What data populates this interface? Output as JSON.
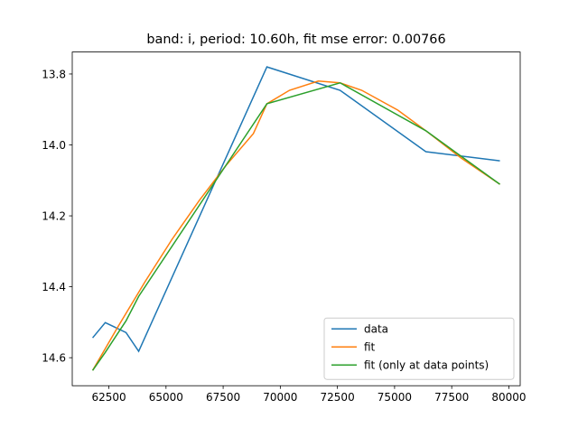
{
  "chart_data": {
    "type": "line",
    "title": "band: i, period: 10.60h, fit mse error: 0.00766",
    "xlim": [
      60898,
      80496
    ],
    "ylim": [
      14.679,
      13.738
    ],
    "xticks": [
      62500,
      65000,
      67500,
      70000,
      72500,
      75000,
      77500,
      80000
    ],
    "yticks": [
      13.8,
      {
        "value": 14,
        "label": "14.0"
      },
      14.2,
      14.4,
      14.6
    ],
    "legend": "lower right",
    "series": [
      {
        "name": "data",
        "color": "#1f77b4",
        "x": [
          61789,
          62342,
          63251,
          63804,
          69414,
          72615,
          76368,
          79608
        ],
        "values": [
          14.544,
          14.501,
          14.529,
          14.582,
          13.78,
          13.846,
          14.019,
          14.045
        ]
      },
      {
        "name": "fit",
        "color": "#ff7f0e",
        "x": [
          61789,
          62895,
          64080,
          65266,
          66451,
          67636,
          68822,
          69414,
          70402,
          71666,
          72615,
          73563,
          75143,
          76368,
          77909,
          79608
        ],
        "values": [
          14.636,
          14.513,
          14.386,
          14.266,
          14.157,
          14.057,
          13.968,
          13.884,
          13.846,
          13.82,
          13.825,
          13.846,
          13.902,
          13.96,
          14.037,
          14.111
        ]
      },
      {
        "name": "fit (only at data points)",
        "color": "#2ca02c",
        "x": [
          61789,
          62342,
          63251,
          63804,
          69414,
          72615,
          76368,
          79608
        ],
        "values": [
          14.636,
          14.585,
          14.496,
          14.427,
          13.884,
          13.825,
          13.96,
          14.111
        ]
      }
    ]
  }
}
